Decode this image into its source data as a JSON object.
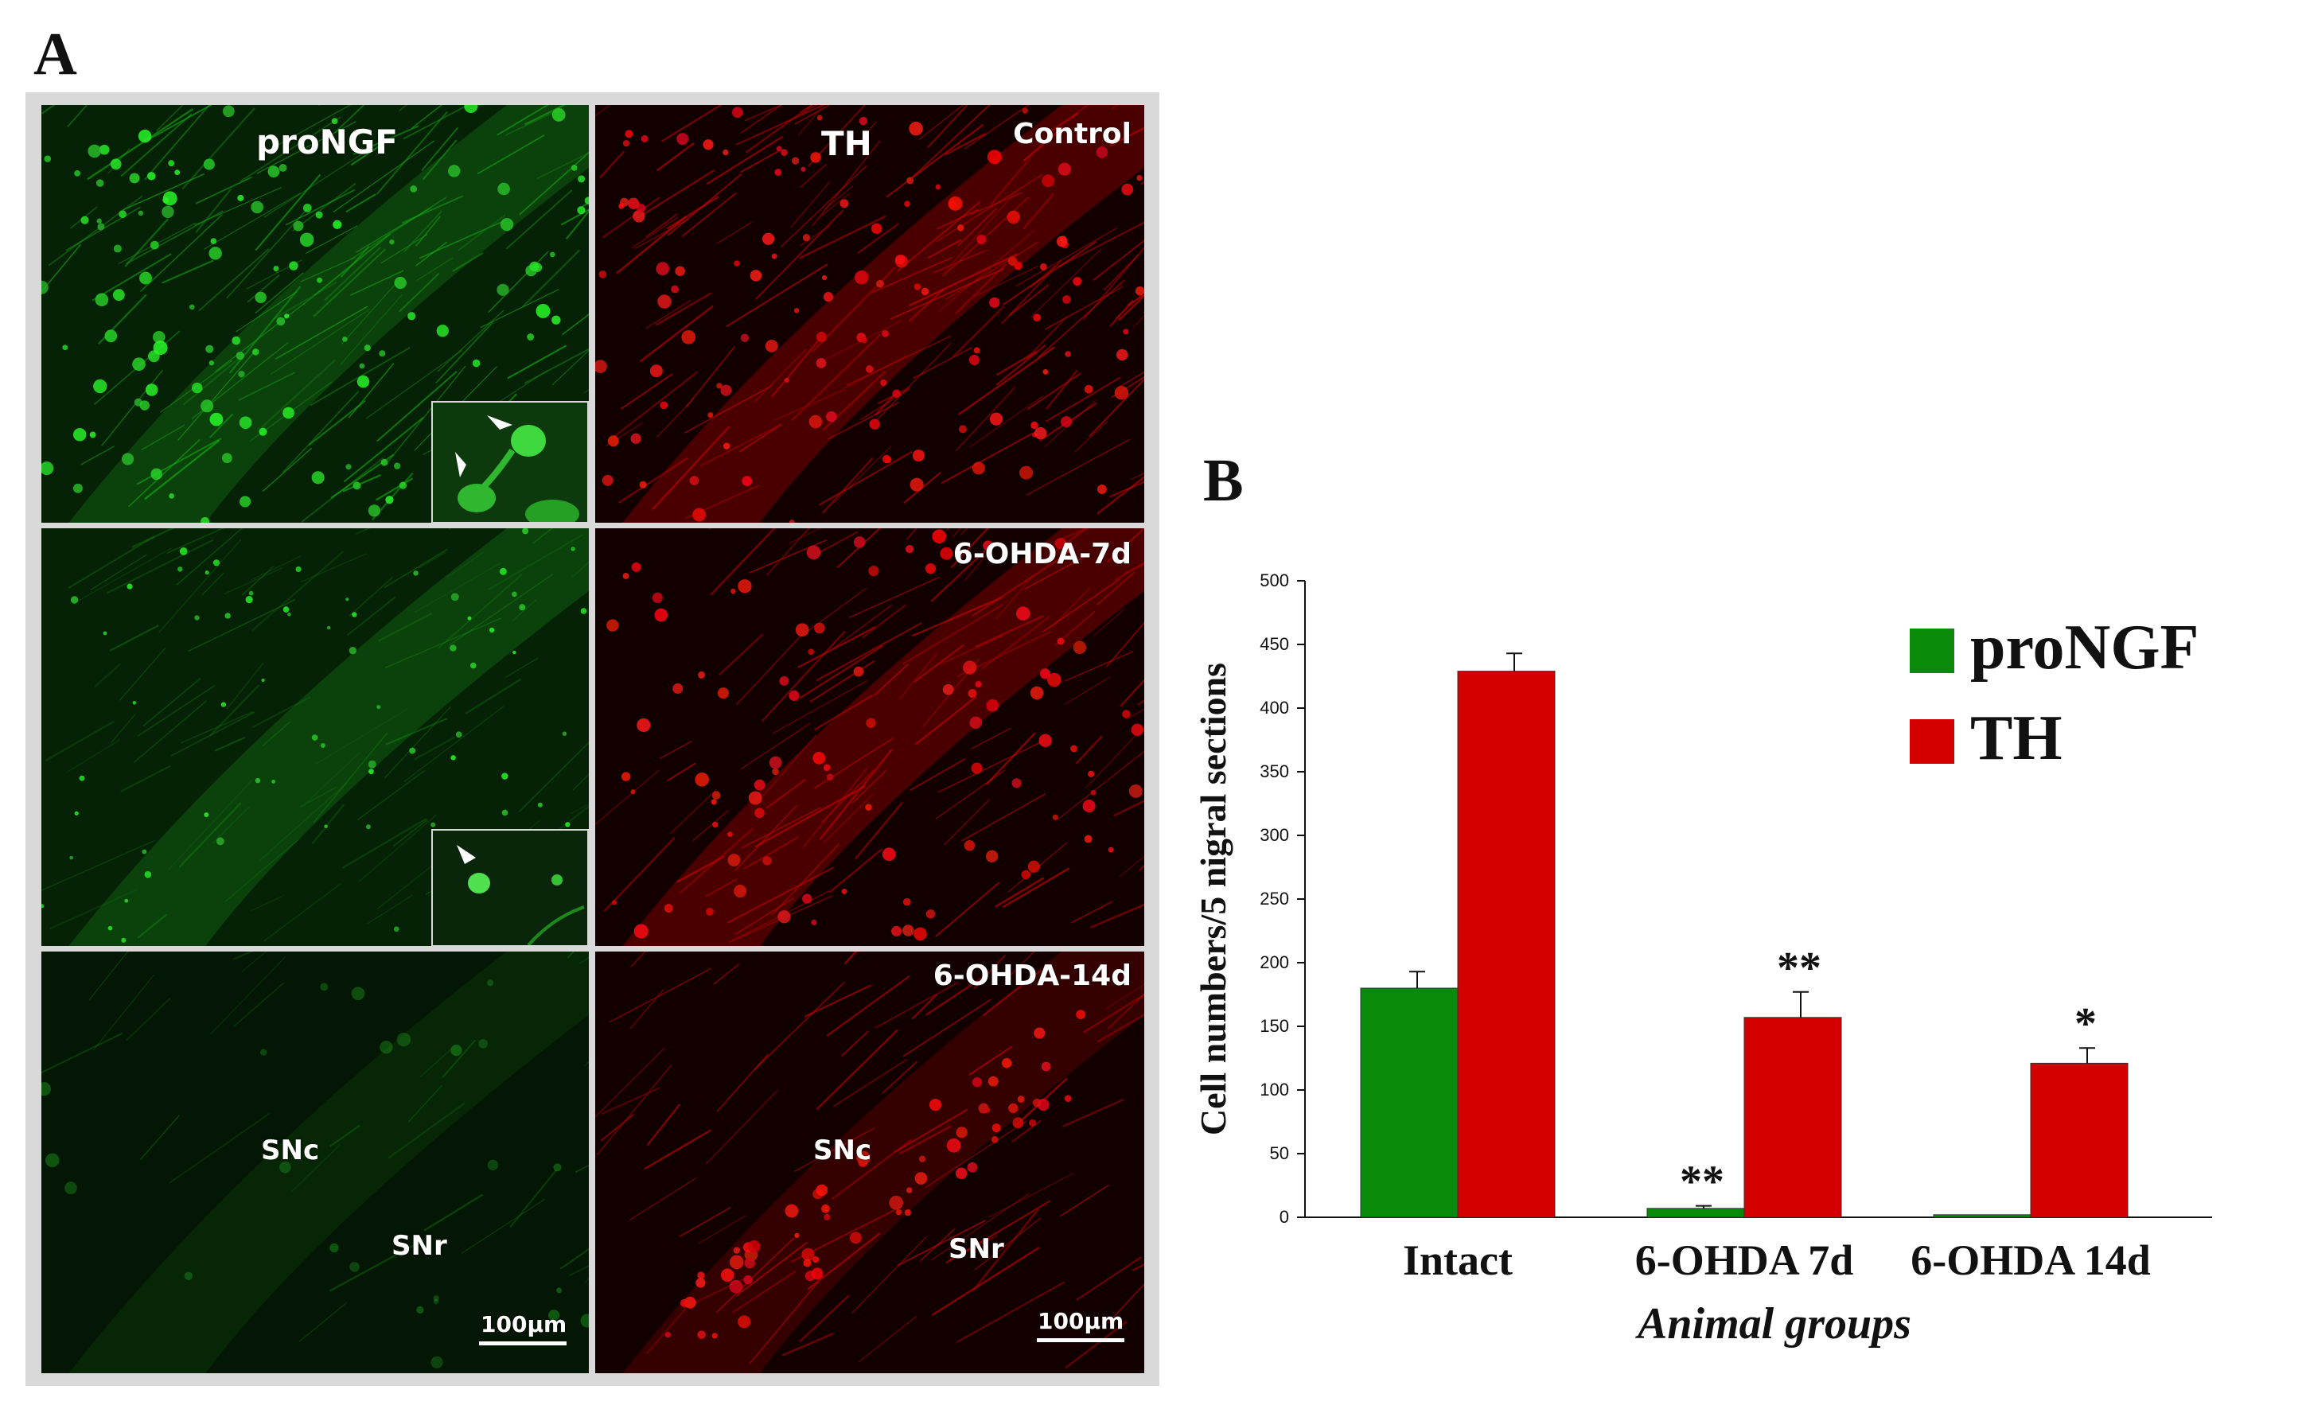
{
  "figure": {
    "panel_a_letter": "A",
    "panel_b_letter": "B",
    "columns": [
      "proNGF",
      "TH"
    ],
    "rows": [
      {
        "condition": "Control"
      },
      {
        "condition": "6-OHDA-7d"
      },
      {
        "condition": "6-OHDA-14d"
      }
    ],
    "region_labels": {
      "snc": "SNc",
      "snr": "SNr"
    },
    "scale_bar": "100µm",
    "colors": {
      "green_channel": "#0f8a0f",
      "red_channel": "#cc0000"
    }
  },
  "chart_data": {
    "type": "bar",
    "categories": [
      "Intact",
      "6-OHDA 7d",
      "6-OHDA 14d"
    ],
    "series": [
      {
        "name": "proNGF",
        "color": "#0a8a0a",
        "values": [
          180,
          7,
          2
        ],
        "errors": [
          13,
          2,
          0
        ],
        "sig": [
          "",
          "**",
          ""
        ]
      },
      {
        "name": "TH",
        "color": "#d40000",
        "values": [
          429,
          157,
          121
        ],
        "errors": [
          14,
          20,
          12
        ],
        "sig": [
          "",
          "**",
          "*"
        ]
      }
    ],
    "xlabel": "Animal groups",
    "ylabel": "Cell numbers/5 nigral sections",
    "ylim": [
      0,
      500
    ],
    "yticks": [
      0,
      50,
      100,
      150,
      200,
      250,
      300,
      350,
      400,
      450,
      500
    ],
    "legend": "top-right"
  }
}
